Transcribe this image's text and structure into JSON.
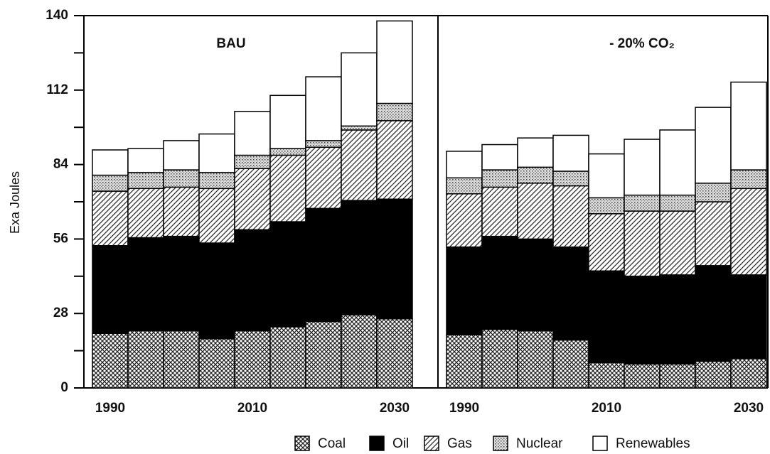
{
  "chart_data": [
    {
      "type": "stacked_bar",
      "title": "BAU",
      "ylabel": "Exa Joules",
      "categories": [
        "1990",
        null,
        null,
        null,
        "2010",
        null,
        null,
        null,
        "2030"
      ],
      "ylim": [
        0,
        140
      ],
      "yticks": [
        0,
        28,
        56,
        84,
        112,
        140
      ],
      "series": [
        {
          "name": "Coal",
          "pattern": "crosshatch",
          "values": [
            20.5,
            21.5,
            21.5,
            18.5,
            21.5,
            23,
            25,
            27.5,
            26
          ]
        },
        {
          "name": "Oil",
          "pattern": "solid",
          "values": [
            33,
            35,
            35.5,
            36,
            38,
            39.5,
            42.5,
            43,
            45
          ]
        },
        {
          "name": "Gas",
          "pattern": "diagonal",
          "values": [
            20.5,
            18.5,
            18.5,
            20.5,
            23,
            25,
            23,
            26.5,
            29.5
          ]
        },
        {
          "name": "Nuclear",
          "pattern": "stipple",
          "values": [
            6,
            6,
            6.5,
            6,
            5,
            2.5,
            2.5,
            1.5,
            6.5
          ]
        },
        {
          "name": "Renewables",
          "pattern": "none",
          "values": [
            9.5,
            9,
            11,
            14.5,
            16.5,
            20,
            24,
            27.5,
            31
          ]
        }
      ]
    },
    {
      "type": "stacked_bar",
      "title": "- 20% CO₂",
      "categories": [
        "1990",
        null,
        null,
        null,
        "2010",
        null,
        null,
        null,
        "2030"
      ],
      "ylim": [
        0,
        140
      ],
      "series": [
        {
          "name": "Coal",
          "pattern": "crosshatch",
          "values": [
            20,
            22,
            21.5,
            18,
            9.5,
            9,
            9,
            10,
            11
          ]
        },
        {
          "name": "Oil",
          "pattern": "solid",
          "values": [
            33,
            35,
            34.5,
            35,
            34.5,
            33,
            33.5,
            36,
            31.5
          ]
        },
        {
          "name": "Gas",
          "pattern": "diagonal",
          "values": [
            20,
            18.5,
            21,
            23,
            21.5,
            24.5,
            24,
            24,
            32.5
          ]
        },
        {
          "name": "Nuclear",
          "pattern": "stipple",
          "values": [
            6,
            6.5,
            6,
            5.5,
            6,
            6,
            6,
            7,
            7
          ]
        },
        {
          "name": "Renewables",
          "pattern": "none",
          "values": [
            10,
            9.5,
            11,
            13.5,
            16.5,
            21,
            24.5,
            28.5,
            33
          ]
        }
      ]
    }
  ]
}
